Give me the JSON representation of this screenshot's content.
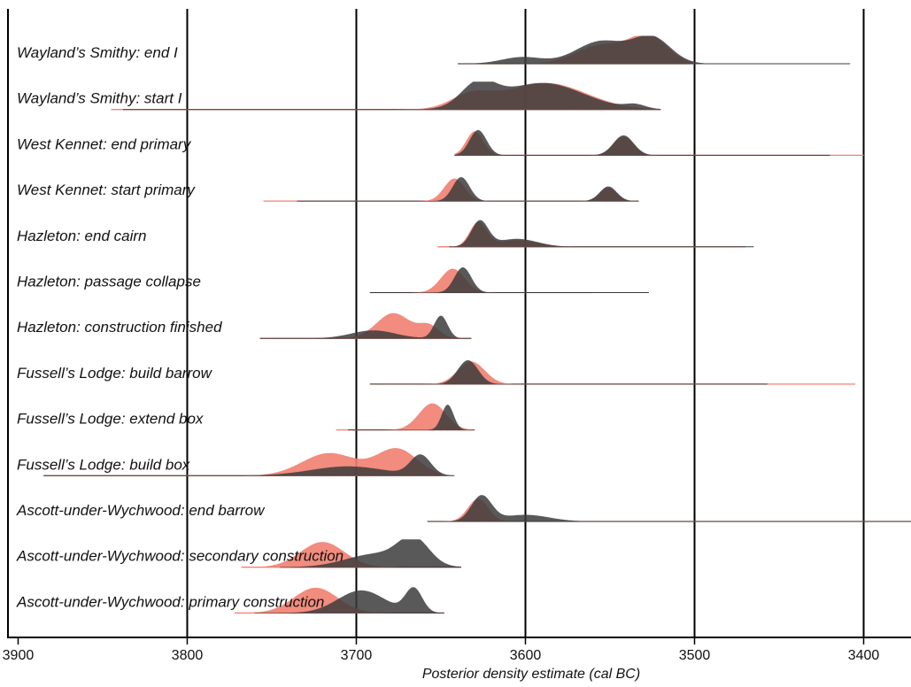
{
  "chart_data": {
    "type": "area",
    "title": "",
    "xlabel": "Posterior density estimate (cal BC)",
    "ylabel": "",
    "xlim": [
      3906,
      3372
    ],
    "x_ticks": [
      3900,
      3800,
      3700,
      3600,
      3500,
      3400
    ],
    "gridlines_at": [
      3800,
      3700,
      3600,
      3500,
      3400
    ],
    "colors": {
      "model_a": "#3c3c3c",
      "model_b": "#f08070",
      "overlap": "#5a3530"
    },
    "rows": [
      {
        "label": "Wayland’s Smithy: end I",
        "range": {
          "model_a": [
            3640,
            3408
          ],
          "model_b": [
            3640,
            3500
          ]
        },
        "model_a_peaks": [
          {
            "x": 3602,
            "sd": 12,
            "h": 0.25
          },
          {
            "x": 3555,
            "sd": 15,
            "h": 0.85
          },
          {
            "x": 3525,
            "sd": 11,
            "h": 0.95
          }
        ],
        "model_b_peaks": [
          {
            "x": 3555,
            "sd": 15,
            "h": 0.7
          },
          {
            "x": 3527,
            "sd": 11,
            "h": 1.0
          }
        ]
      },
      {
        "label": "Wayland’s Smithy: start I",
        "range": {
          "model_a": [
            3838,
            3520
          ],
          "model_b": [
            3845,
            3520
          ]
        },
        "model_a_peaks": [
          {
            "x": 3628,
            "sd": 10,
            "h": 0.85
          },
          {
            "x": 3590,
            "sd": 24,
            "h": 1.0
          },
          {
            "x": 3535,
            "sd": 6,
            "h": 0.15
          }
        ],
        "model_b_peaks": [
          {
            "x": 3632,
            "sd": 12,
            "h": 0.5
          },
          {
            "x": 3588,
            "sd": 24,
            "h": 1.0
          }
        ]
      },
      {
        "label": "West Kennet: end primary",
        "range": {
          "model_a": [
            3642,
            3420
          ],
          "model_b": [
            3642,
            3400
          ]
        },
        "model_a_peaks": [
          {
            "x": 3628,
            "sd": 5,
            "h": 0.95
          },
          {
            "x": 3542,
            "sd": 6,
            "h": 0.75
          }
        ],
        "model_b_peaks": [
          {
            "x": 3630,
            "sd": 5,
            "h": 0.9
          },
          {
            "x": 3542,
            "sd": 6,
            "h": 0.7
          }
        ]
      },
      {
        "label": "West Kennet: start primary",
        "range": {
          "model_a": [
            3735,
            3533
          ],
          "model_b": [
            3755,
            3533
          ]
        },
        "model_a_peaks": [
          {
            "x": 3638,
            "sd": 5,
            "h": 0.9
          },
          {
            "x": 3551,
            "sd": 5,
            "h": 0.55
          }
        ],
        "model_b_peaks": [
          {
            "x": 3642,
            "sd": 6,
            "h": 0.85
          },
          {
            "x": 3551,
            "sd": 5,
            "h": 0.5
          }
        ]
      },
      {
        "label": "Hazleton: end cairn",
        "range": {
          "model_a": [
            3645,
            3465
          ],
          "model_b": [
            3652,
            3470
          ]
        },
        "model_a_peaks": [
          {
            "x": 3627,
            "sd": 5,
            "h": 0.95
          },
          {
            "x": 3605,
            "sd": 12,
            "h": 0.3
          }
        ],
        "model_b_peaks": [
          {
            "x": 3628,
            "sd": 5,
            "h": 0.9
          },
          {
            "x": 3605,
            "sd": 12,
            "h": 0.25
          }
        ]
      },
      {
        "label": "Hazleton: passage collapse",
        "range": {
          "model_a": [
            3692,
            3527
          ],
          "model_b": [
            3692,
            3560
          ]
        },
        "model_a_peaks": [
          {
            "x": 3637,
            "sd": 5,
            "h": 0.95
          }
        ],
        "model_b_peaks": [
          {
            "x": 3643,
            "sd": 7,
            "h": 0.9
          }
        ]
      },
      {
        "label": "Hazleton: construction finished",
        "range": {
          "model_a": [
            3757,
            3632
          ],
          "model_b": [
            3757,
            3632
          ]
        },
        "model_a_peaks": [
          {
            "x": 3690,
            "sd": 13,
            "h": 0.3
          },
          {
            "x": 3650,
            "sd": 4,
            "h": 0.85
          }
        ],
        "model_b_peaks": [
          {
            "x": 3678,
            "sd": 10,
            "h": 0.95
          },
          {
            "x": 3657,
            "sd": 6,
            "h": 0.45
          }
        ]
      },
      {
        "label": "Fussell’s Lodge: build barrow",
        "range": {
          "model_a": [
            3692,
            3457
          ],
          "model_b": [
            3692,
            3405
          ]
        },
        "model_a_peaks": [
          {
            "x": 3634,
            "sd": 6,
            "h": 0.9
          }
        ],
        "model_b_peaks": [
          {
            "x": 3632,
            "sd": 8,
            "h": 0.85
          }
        ]
      },
      {
        "label": "Fussell’s Lodge: extend box",
        "range": {
          "model_a": [
            3705,
            3630
          ],
          "model_b": [
            3712,
            3630
          ]
        },
        "model_a_peaks": [
          {
            "x": 3646,
            "sd": 3.5,
            "h": 0.95
          }
        ],
        "model_b_peaks": [
          {
            "x": 3655,
            "sd": 8,
            "h": 1.0
          }
        ]
      },
      {
        "label": "Fussell’s Lodge: build box",
        "range": {
          "model_a": [
            3885,
            3642
          ],
          "model_b": [
            3885,
            3650
          ]
        },
        "model_a_peaks": [
          {
            "x": 3705,
            "sd": 22,
            "h": 0.35
          },
          {
            "x": 3662,
            "sd": 6,
            "h": 0.75
          }
        ],
        "model_b_peaks": [
          {
            "x": 3716,
            "sd": 16,
            "h": 0.85
          },
          {
            "x": 3676,
            "sd": 12,
            "h": 1.0
          }
        ]
      },
      {
        "label": "Ascott-under-Wychwood: end barrow",
        "range": {
          "model_a": [
            3658,
            3372
          ],
          "model_b": [
            3658,
            3372
          ]
        },
        "model_a_peaks": [
          {
            "x": 3626,
            "sd": 6,
            "h": 0.95
          },
          {
            "x": 3600,
            "sd": 14,
            "h": 0.25
          }
        ],
        "model_b_peaks": [
          {
            "x": 3628,
            "sd": 6,
            "h": 0.85
          }
        ]
      },
      {
        "label": "Ascott-under-Wychwood: secondary construction",
        "range": {
          "model_a": [
            3745,
            3638
          ],
          "model_b": [
            3768,
            3638
          ]
        },
        "model_a_peaks": [
          {
            "x": 3688,
            "sd": 18,
            "h": 0.5
          },
          {
            "x": 3666,
            "sd": 9,
            "h": 0.95
          }
        ],
        "model_b_peaks": [
          {
            "x": 3720,
            "sd": 13,
            "h": 0.95
          }
        ]
      },
      {
        "label": "Ascott-under-Wychwood: primary construction",
        "range": {
          "model_a": [
            3760,
            3648
          ],
          "model_b": [
            3772,
            3648
          ]
        },
        "model_a_peaks": [
          {
            "x": 3697,
            "sd": 14,
            "h": 0.85
          },
          {
            "x": 3666,
            "sd": 5,
            "h": 0.9
          }
        ],
        "model_b_peaks": [
          {
            "x": 3724,
            "sd": 13,
            "h": 0.95
          }
        ]
      }
    ]
  }
}
